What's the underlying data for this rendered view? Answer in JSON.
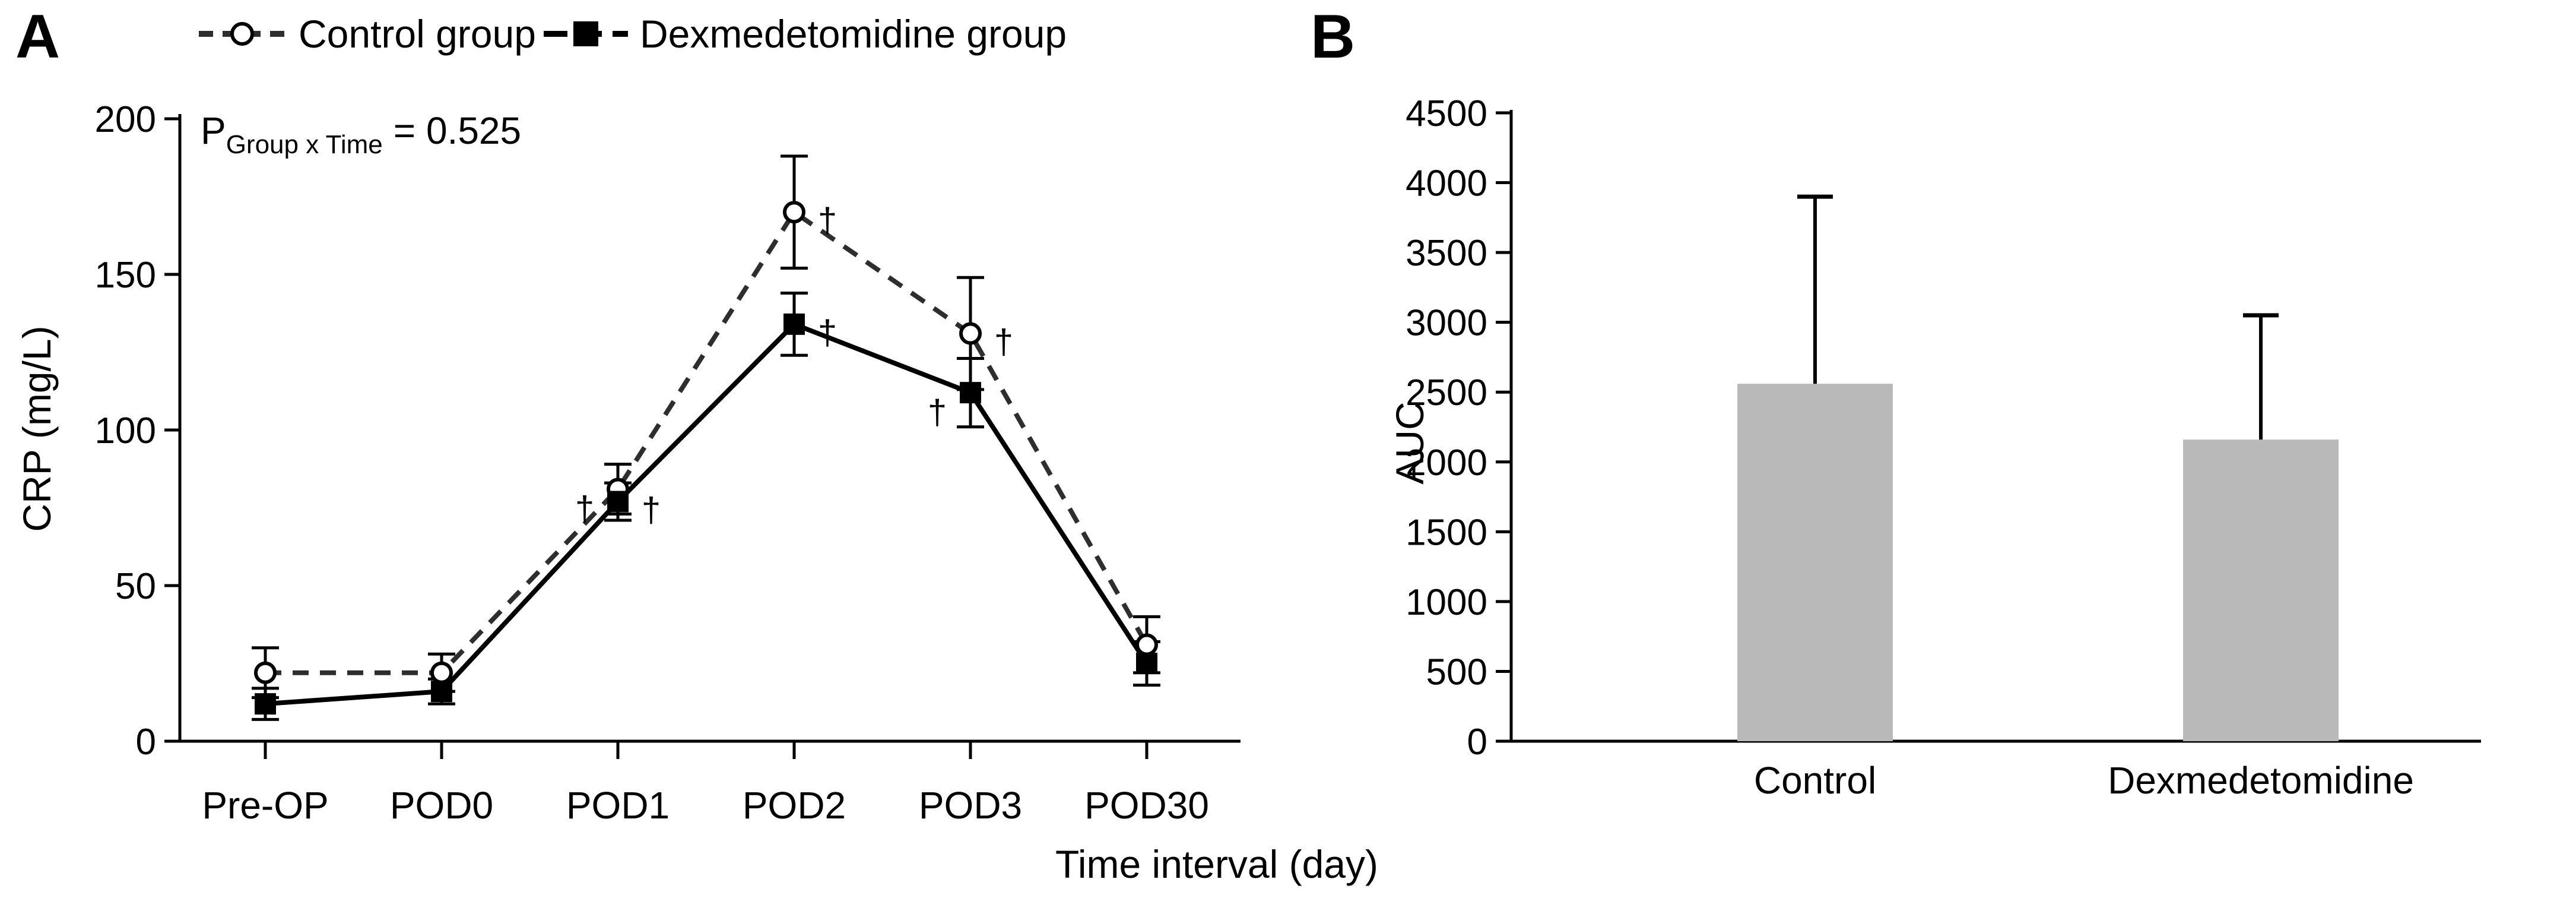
{
  "figure": {
    "panel_a_label": "A",
    "panel_b_label": "B",
    "p_annotation": {
      "prefix": "P",
      "subscript": "Group x Time",
      "rest": "= 0.525"
    },
    "dagger_symbol": "†"
  },
  "legend": {
    "items": [
      {
        "label": "Control group",
        "marker": "open-circle",
        "line": "dashed"
      },
      {
        "label": "Dexmedetomidine group",
        "marker": "filled-square",
        "line": "solid"
      }
    ]
  },
  "colors": {
    "axis": "#000000",
    "solid_series": "#000000",
    "dashed_series": "#2e2e2e",
    "bar_fill": "#b9b9b9",
    "text": "#000000",
    "background": "#ffffff"
  },
  "chart_data": [
    {
      "type": "line",
      "panel": "A",
      "ylabel": "CRP (mg/L)",
      "xlabel": "Time interval (day)",
      "ylim": [
        0,
        200
      ],
      "ytick_step": 50,
      "yticks": [
        "0",
        "50",
        "100",
        "150",
        "200"
      ],
      "grid": false,
      "legend_position": "top",
      "stat_note": "P(Group x Time) = 0.525",
      "categories": [
        "Pre-OP",
        "POD0",
        "POD1",
        "POD2",
        "POD3",
        "POD30"
      ],
      "series": [
        {
          "name": "Control group",
          "marker": "open-circle",
          "line": "dashed",
          "values": [
            22,
            22,
            81,
            170,
            131,
            31
          ],
          "errors": [
            8,
            6,
            8,
            18,
            18,
            9
          ]
        },
        {
          "name": "Dexmedetomidine group",
          "marker": "filled-square",
          "line": "solid",
          "values": [
            12,
            16,
            77,
            134,
            112,
            25
          ],
          "errors": [
            5,
            4,
            6,
            10,
            11,
            7
          ]
        }
      ],
      "annotations": [
        {
          "series": 0,
          "point": 2,
          "symbol": "†",
          "side": "left"
        },
        {
          "series": 1,
          "point": 2,
          "symbol": "†",
          "side": "right"
        },
        {
          "series": 0,
          "point": 3,
          "symbol": "†",
          "side": "right"
        },
        {
          "series": 1,
          "point": 3,
          "symbol": "†",
          "side": "right"
        },
        {
          "series": 0,
          "point": 4,
          "symbol": "†",
          "side": "right"
        },
        {
          "series": 1,
          "point": 4,
          "symbol": "†",
          "side": "left"
        }
      ]
    },
    {
      "type": "bar",
      "panel": "B",
      "ylabel": "AUC",
      "ylim": [
        0,
        4500
      ],
      "ytick_step": 500,
      "yticks": [
        "0",
        "500",
        "1000",
        "1500",
        "2000",
        "2500",
        "3000",
        "3500",
        "4000",
        "4500"
      ],
      "grid": false,
      "categories": [
        "Control",
        "Dexmedetomidine"
      ],
      "values": [
        2560,
        2160
      ],
      "errors_upper": [
        1340,
        890
      ],
      "bar_color": "#b9b9b9"
    }
  ]
}
